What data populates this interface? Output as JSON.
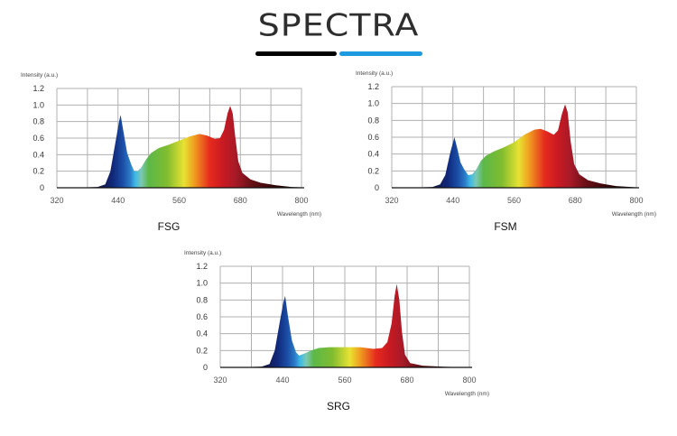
{
  "logo": "SPECTRA",
  "colors": {
    "logo": "#2e2e2e",
    "bar_left": "#000000",
    "bar_right": "#1e9be0",
    "grid": "#b0b0b0"
  },
  "chart_data": [
    {
      "type": "area",
      "title": "FSG",
      "ylabel": "Intensity (a.u.)",
      "xlabel": "Wavelength (nm)",
      "xlim": [
        320,
        800
      ],
      "ylim": [
        0,
        1.2
      ],
      "xticks": [
        "320",
        "440",
        "560",
        "680",
        "800"
      ],
      "yticks": [
        "0",
        "0.2",
        "0.4",
        "0.6",
        "0.8",
        "1.0",
        "1.2"
      ],
      "grid": true,
      "points": [
        [
          320,
          0
        ],
        [
          380,
          0.005
        ],
        [
          400,
          0.01
        ],
        [
          415,
          0.04
        ],
        [
          425,
          0.2
        ],
        [
          435,
          0.55
        ],
        [
          442,
          0.8
        ],
        [
          445,
          0.88
        ],
        [
          450,
          0.7
        ],
        [
          458,
          0.42
        ],
        [
          466,
          0.28
        ],
        [
          472,
          0.2
        ],
        [
          478,
          0.2
        ],
        [
          485,
          0.24
        ],
        [
          495,
          0.34
        ],
        [
          505,
          0.42
        ],
        [
          520,
          0.48
        ],
        [
          540,
          0.52
        ],
        [
          560,
          0.57
        ],
        [
          580,
          0.62
        ],
        [
          600,
          0.65
        ],
        [
          615,
          0.63
        ],
        [
          630,
          0.59
        ],
        [
          640,
          0.6
        ],
        [
          648,
          0.7
        ],
        [
          655,
          0.9
        ],
        [
          660,
          0.99
        ],
        [
          665,
          0.9
        ],
        [
          670,
          0.62
        ],
        [
          676,
          0.32
        ],
        [
          684,
          0.18
        ],
        [
          700,
          0.1
        ],
        [
          720,
          0.06
        ],
        [
          750,
          0.03
        ],
        [
          780,
          0.01
        ],
        [
          800,
          0.005
        ]
      ]
    },
    {
      "type": "area",
      "title": "FSM",
      "ylabel": "Intensity (a.u.)",
      "xlabel": "Wavelength (nm)",
      "xlim": [
        320,
        800
      ],
      "ylim": [
        0,
        1.2
      ],
      "xticks": [
        "320",
        "440",
        "560",
        "680",
        "800"
      ],
      "yticks": [
        "0",
        "0.2",
        "0.4",
        "0.6",
        "0.8",
        "1.0",
        "1.2"
      ],
      "grid": true,
      "points": [
        [
          320,
          0
        ],
        [
          380,
          0.005
        ],
        [
          400,
          0.01
        ],
        [
          415,
          0.04
        ],
        [
          425,
          0.15
        ],
        [
          435,
          0.42
        ],
        [
          443,
          0.6
        ],
        [
          448,
          0.48
        ],
        [
          455,
          0.3
        ],
        [
          462,
          0.22
        ],
        [
          470,
          0.15
        ],
        [
          478,
          0.16
        ],
        [
          486,
          0.22
        ],
        [
          495,
          0.32
        ],
        [
          505,
          0.38
        ],
        [
          520,
          0.43
        ],
        [
          540,
          0.48
        ],
        [
          560,
          0.54
        ],
        [
          580,
          0.63
        ],
        [
          600,
          0.69
        ],
        [
          612,
          0.7
        ],
        [
          625,
          0.67
        ],
        [
          638,
          0.63
        ],
        [
          646,
          0.68
        ],
        [
          654,
          0.88
        ],
        [
          660,
          0.99
        ],
        [
          665,
          0.9
        ],
        [
          671,
          0.55
        ],
        [
          678,
          0.28
        ],
        [
          688,
          0.16
        ],
        [
          705,
          0.09
        ],
        [
          730,
          0.05
        ],
        [
          760,
          0.02
        ],
        [
          800,
          0.005
        ]
      ]
    },
    {
      "type": "area",
      "title": "SRG",
      "ylabel": "Intensity (a.u.)",
      "xlabel": "Wavelength (nm)",
      "xlim": [
        320,
        800
      ],
      "ylim": [
        0,
        1.2
      ],
      "xticks": [
        "320",
        "440",
        "560",
        "680",
        "800"
      ],
      "yticks": [
        "0",
        "0.2",
        "0.4",
        "0.6",
        "0.8",
        "1.0",
        "1.2"
      ],
      "grid": true,
      "points": [
        [
          320,
          0
        ],
        [
          380,
          0.005
        ],
        [
          400,
          0.01
        ],
        [
          415,
          0.04
        ],
        [
          425,
          0.2
        ],
        [
          435,
          0.55
        ],
        [
          442,
          0.78
        ],
        [
          445,
          0.85
        ],
        [
          450,
          0.62
        ],
        [
          458,
          0.32
        ],
        [
          466,
          0.18
        ],
        [
          472,
          0.14
        ],
        [
          480,
          0.16
        ],
        [
          495,
          0.2
        ],
        [
          510,
          0.23
        ],
        [
          530,
          0.24
        ],
        [
          560,
          0.24
        ],
        [
          590,
          0.24
        ],
        [
          615,
          0.22
        ],
        [
          632,
          0.23
        ],
        [
          642,
          0.3
        ],
        [
          650,
          0.52
        ],
        [
          656,
          0.85
        ],
        [
          660,
          0.99
        ],
        [
          665,
          0.8
        ],
        [
          670,
          0.42
        ],
        [
          676,
          0.15
        ],
        [
          686,
          0.05
        ],
        [
          710,
          0.02
        ],
        [
          750,
          0.008
        ],
        [
          800,
          0
        ]
      ]
    }
  ]
}
